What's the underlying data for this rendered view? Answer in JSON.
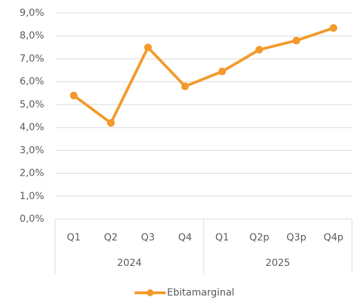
{
  "chart_data": {
    "type": "line",
    "groups": [
      {
        "name": "2024",
        "categories": [
          "Q1",
          "Q2",
          "Q3",
          "Q4"
        ]
      },
      {
        "name": "2025",
        "categories": [
          "Q1",
          "Q2p",
          "Q3p",
          "Q4p"
        ]
      }
    ],
    "series": [
      {
        "name": "Ebitamarginal",
        "color": "#f39a2b",
        "values": [
          5.4,
          4.2,
          7.5,
          5.8,
          6.45,
          7.4,
          7.8,
          8.35
        ]
      }
    ],
    "ylim": [
      0,
      9
    ],
    "yticks": [
      {
        "value": 0,
        "label": "0,0%"
      },
      {
        "value": 1,
        "label": "1,0%"
      },
      {
        "value": 2,
        "label": "2,0%"
      },
      {
        "value": 3,
        "label": "3,0%"
      },
      {
        "value": 4,
        "label": "4,0%"
      },
      {
        "value": 5,
        "label": "5,0%"
      },
      {
        "value": 6,
        "label": "6,0%"
      },
      {
        "value": 7,
        "label": "7,0%"
      },
      {
        "value": 8,
        "label": "8,0%"
      },
      {
        "value": 9,
        "label": "9,0%"
      }
    ],
    "grid": true,
    "legend": "bottom"
  }
}
